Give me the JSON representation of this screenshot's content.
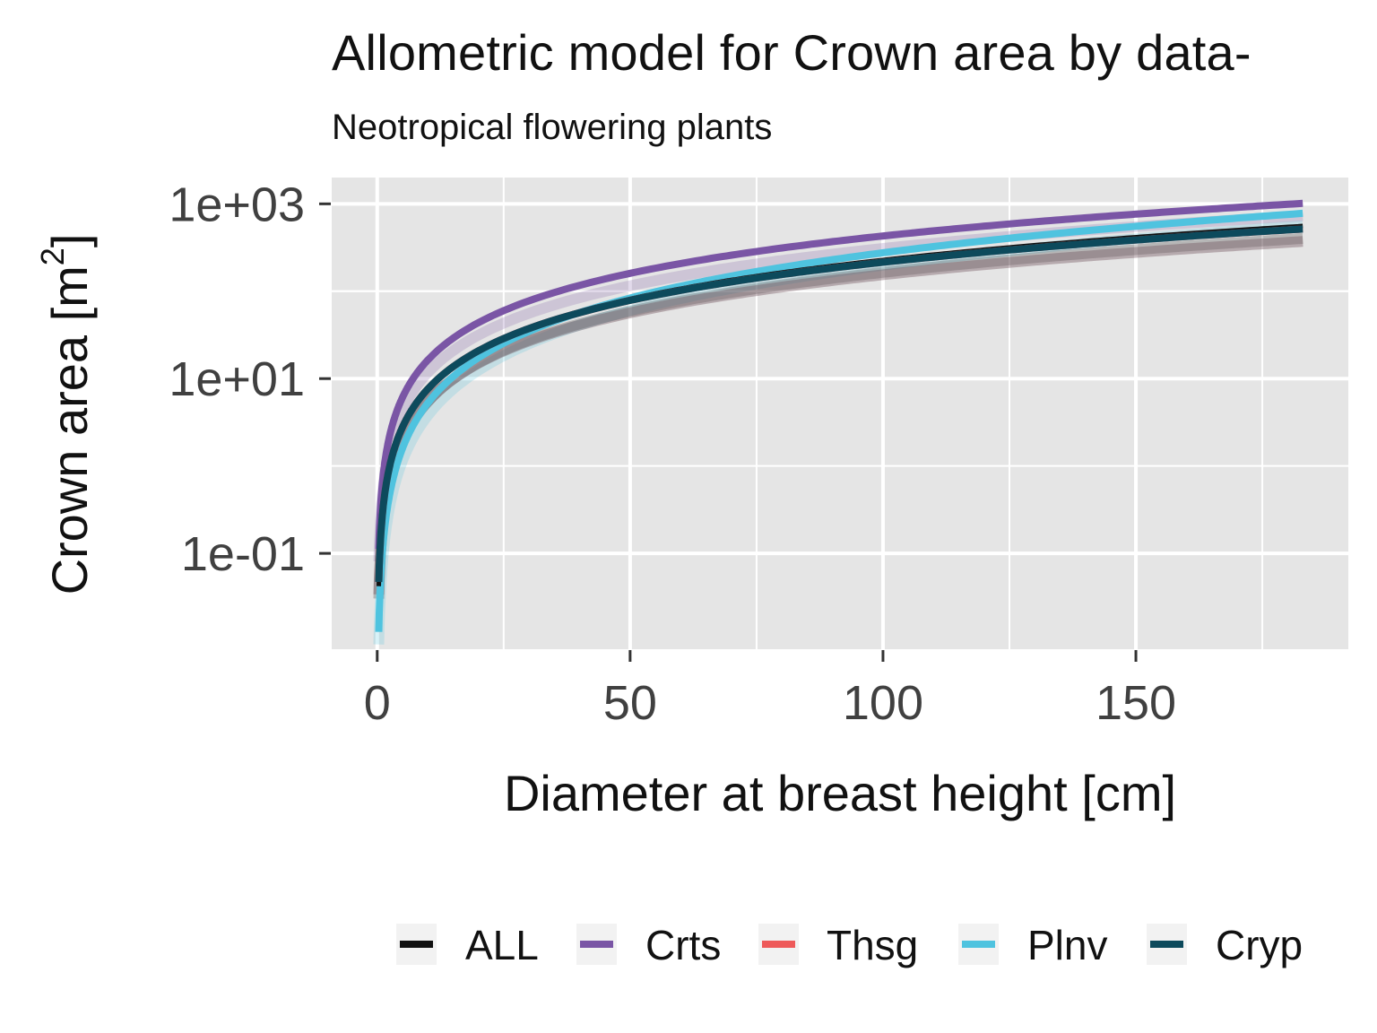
{
  "chart_data": {
    "type": "line",
    "title": "Allometric model for Crown area by data-",
    "subtitle": "Neotropical flowering plants",
    "xlabel": "Diameter at breast height [cm]",
    "ylabel_main": "Crown area [m",
    "ylabel_sup": "2",
    "ylabel_close": "]",
    "yscale": "log10",
    "xlim": [
      -9,
      192
    ],
    "ylim": [
      0.008,
      2000
    ],
    "xticks": [
      0,
      50,
      100,
      150
    ],
    "xtick_labels": [
      "0",
      "50",
      "100",
      "150"
    ],
    "yticks": [
      0.1,
      10,
      1000
    ],
    "ytick_labels": [
      "1e-01",
      "1e+01",
      "1e+03"
    ],
    "grid": true,
    "legend_position": "bottom",
    "series": [
      {
        "name": "Crts",
        "color": "#7a55a5",
        "a": 0.62,
        "b": 1.42,
        "x": [
          0.3,
          1,
          2,
          5,
          10,
          20,
          30,
          50,
          75,
          100,
          125,
          150,
          183
        ],
        "values": [
          0.111,
          0.62,
          1.66,
          6.18,
          16.5,
          44.4,
          79.4,
          164,
          292,
          440,
          601,
          778,
          1030
        ]
      },
      {
        "name": "Plnv",
        "color": "#4fc3df",
        "a": 0.1,
        "b": 1.72,
        "x": [
          0.3,
          1,
          2,
          5,
          10,
          20,
          30,
          50,
          75,
          100,
          125,
          150,
          183
        ],
        "values": [
          0.0126,
          0.1,
          0.33,
          1.59,
          5.25,
          17.3,
          34.7,
          83.5,
          168,
          276,
          406,
          556,
          784
        ]
      },
      {
        "name": "ALL",
        "color": "#111111",
        "a": 0.25,
        "b": 1.48,
        "x": [
          0.3,
          1,
          2,
          5,
          10,
          20,
          30,
          50,
          75,
          100,
          125,
          150,
          183
        ],
        "values": [
          0.042,
          0.25,
          0.7,
          2.72,
          7.55,
          21,
          38.2,
          81.6,
          148,
          229,
          318,
          417,
          562
        ]
      },
      {
        "name": "Thsg",
        "color": "#ee5a5a",
        "a": 0.27,
        "b": 1.45,
        "x": [
          0.3,
          1,
          2,
          5,
          10,
          20,
          30,
          50,
          75,
          100,
          125,
          150,
          183
        ],
        "values": [
          0.047,
          0.27,
          0.74,
          2.8,
          7.61,
          20.8,
          37.4,
          78.3,
          141,
          214,
          295,
          383,
          512
        ]
      },
      {
        "name": "Cryp",
        "color": "#0d4a5c",
        "a": 0.27,
        "b": 1.45,
        "x": [
          0.3,
          1,
          2,
          5,
          10,
          20,
          30,
          50,
          75,
          100,
          125,
          150,
          183
        ],
        "values": [
          0.047,
          0.27,
          0.74,
          2.8,
          7.61,
          20.8,
          37.4,
          78.3,
          141,
          214,
          295,
          383,
          512
        ]
      }
    ],
    "legend_order": [
      "ALL",
      "Crts",
      "Thsg",
      "Plnv",
      "Cryp"
    ],
    "colors": {
      "panel": "#e5e5e5",
      "grid": "#ffffff",
      "tick": "#333333"
    }
  }
}
